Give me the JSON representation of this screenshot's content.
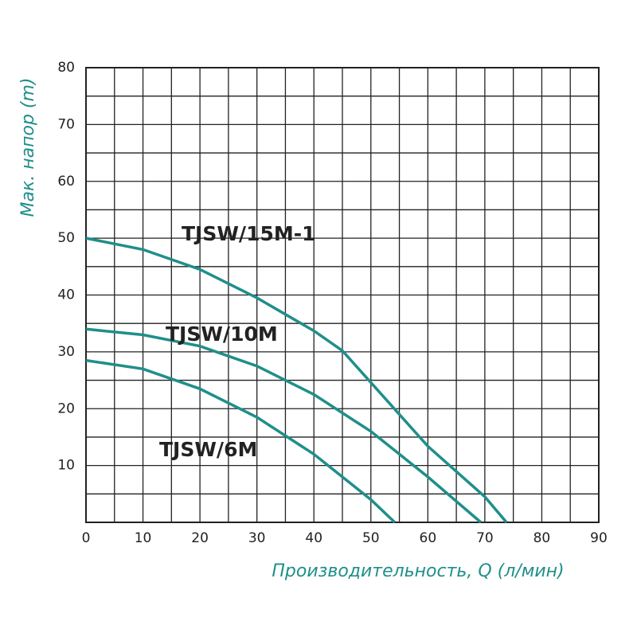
{
  "chart_data": {
    "type": "line",
    "x_label": "Производительность, Q (л/мин)",
    "y_label": "Мак. напор (m)",
    "xlim": [
      0,
      90
    ],
    "xticks": [
      0,
      10,
      20,
      30,
      40,
      50,
      60,
      70,
      80,
      90
    ],
    "ylim": [
      0,
      80
    ],
    "yticks": [
      10,
      20,
      30,
      40,
      50,
      60,
      70,
      80
    ],
    "grid": true,
    "series": [
      {
        "name": "TJSW/15M-1",
        "color": "#1f8f8a",
        "x": [
          0,
          10,
          20,
          30,
          40,
          45,
          50,
          60,
          70,
          73.8
        ],
        "values": [
          50,
          48,
          44.5,
          39.5,
          33.7,
          30.2,
          24.6,
          13.4,
          4.5,
          0
        ]
      },
      {
        "name": "TJSW/10M",
        "color": "#1f8f8a",
        "x": [
          0,
          10,
          20,
          30,
          40,
          50,
          60,
          69.3
        ],
        "values": [
          34,
          33,
          31,
          27.5,
          22.5,
          16,
          8,
          0
        ]
      },
      {
        "name": "TJSW/6M",
        "color": "#1f8f8a",
        "x": [
          0,
          10,
          20,
          30,
          40,
          50,
          54.2
        ],
        "values": [
          28.5,
          27,
          23.5,
          18.5,
          12,
          4,
          0
        ]
      }
    ]
  }
}
